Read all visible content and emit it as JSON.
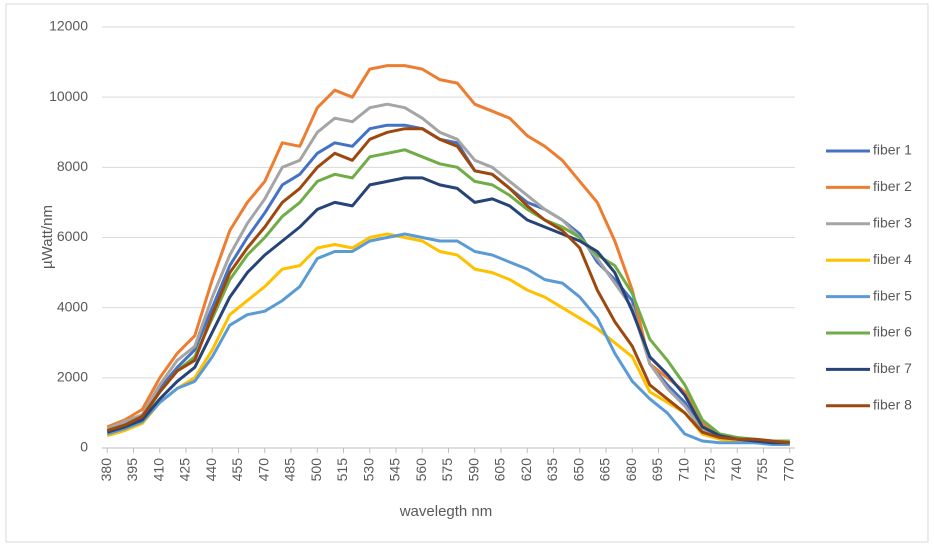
{
  "chart_data": {
    "type": "line",
    "xlabel": "wavelegth nm",
    "ylabel": "µWatt/nm",
    "x": [
      380,
      390,
      400,
      410,
      420,
      430,
      440,
      450,
      460,
      470,
      480,
      490,
      500,
      510,
      520,
      530,
      540,
      550,
      560,
      570,
      580,
      590,
      600,
      610,
      620,
      630,
      640,
      650,
      660,
      670,
      680,
      690,
      700,
      710,
      720,
      730,
      740,
      750,
      760,
      770
    ],
    "xlim": [
      377,
      773
    ],
    "xticks": [
      380,
      395,
      410,
      425,
      440,
      455,
      470,
      485,
      500,
      515,
      530,
      545,
      560,
      575,
      590,
      605,
      620,
      635,
      650,
      665,
      680,
      695,
      710,
      725,
      740,
      755,
      770
    ],
    "ylim": [
      0,
      12000
    ],
    "yticks": [
      0,
      2000,
      4000,
      6000,
      8000,
      10000,
      12000
    ],
    "grid": true,
    "legend": "right",
    "series": [
      {
        "name": "fiber 1",
        "color": "#4472c4",
        "values": [
          500,
          700,
          900,
          1700,
          2300,
          2800,
          4000,
          5200,
          6000,
          6700,
          7500,
          7800,
          8400,
          8700,
          8600,
          9100,
          9200,
          9200,
          9100,
          8800,
          8700,
          7900,
          7800,
          7400,
          7000,
          6800,
          6500,
          6100,
          5300,
          4800,
          4200,
          2400,
          1800,
          1300,
          500,
          300,
          250,
          200,
          150,
          150
        ]
      },
      {
        "name": "fiber 2",
        "color": "#ed7d31",
        "values": [
          600,
          800,
          1100,
          2000,
          2700,
          3200,
          4800,
          6200,
          7000,
          7600,
          8700,
          8600,
          9700,
          10200,
          10000,
          10800,
          10900,
          10900,
          10800,
          10500,
          10400,
          9800,
          9600,
          9400,
          8900,
          8600,
          8200,
          7600,
          7000,
          5900,
          4500,
          2400,
          2000,
          1600,
          700,
          350,
          250,
          200,
          150,
          150
        ]
      },
      {
        "name": "fiber 3",
        "color": "#a5a5a5",
        "values": [
          550,
          750,
          950,
          1800,
          2500,
          2900,
          4300,
          5500,
          6400,
          7100,
          8000,
          8200,
          9000,
          9400,
          9300,
          9700,
          9800,
          9700,
          9400,
          9000,
          8800,
          8200,
          8000,
          7600,
          7200,
          6800,
          6500,
          6000,
          5400,
          4700,
          4000,
          2400,
          1700,
          1200,
          500,
          300,
          250,
          200,
          150,
          150
        ]
      },
      {
        "name": "fiber 4",
        "color": "#ffc000",
        "values": [
          350,
          500,
          700,
          1300,
          1700,
          2000,
          2800,
          3800,
          4200,
          4600,
          5100,
          5200,
          5700,
          5800,
          5700,
          6000,
          6100,
          6000,
          5900,
          5600,
          5500,
          5100,
          5000,
          4800,
          4500,
          4300,
          4000,
          3700,
          3400,
          3000,
          2600,
          1600,
          1300,
          1000,
          400,
          250,
          200,
          150,
          150,
          150
        ]
      },
      {
        "name": "fiber 5",
        "color": "#5b9bd5",
        "values": [
          400,
          550,
          750,
          1300,
          1700,
          1900,
          2600,
          3500,
          3800,
          3900,
          4200,
          4600,
          5400,
          5600,
          5600,
          5900,
          6000,
          6100,
          6000,
          5900,
          5900,
          5600,
          5500,
          5300,
          5100,
          4800,
          4700,
          4300,
          3700,
          2700,
          1900,
          1400,
          1000,
          400,
          200,
          150,
          150,
          150,
          100,
          100
        ]
      },
      {
        "name": "fiber 6",
        "color": "#70ad47",
        "values": [
          500,
          650,
          850,
          1600,
          2200,
          2600,
          3700,
          4800,
          5500,
          6000,
          6600,
          7000,
          7600,
          7800,
          7700,
          8300,
          8400,
          8500,
          8300,
          8100,
          8000,
          7600,
          7500,
          7200,
          6800,
          6500,
          6300,
          6000,
          5500,
          5200,
          4400,
          3100,
          2500,
          1800,
          800,
          400,
          300,
          250,
          200,
          200
        ]
      },
      {
        "name": "fiber 7",
        "color": "#264478",
        "values": [
          450,
          600,
          800,
          1400,
          1900,
          2300,
          3300,
          4300,
          5000,
          5500,
          5900,
          6300,
          6800,
          7000,
          6900,
          7500,
          7600,
          7700,
          7700,
          7500,
          7400,
          7000,
          7100,
          6900,
          6500,
          6300,
          6100,
          5900,
          5600,
          5000,
          3900,
          2600,
          2100,
          1500,
          600,
          350,
          250,
          200,
          150,
          150
        ]
      },
      {
        "name": "fiber 8",
        "color": "#9e480e",
        "values": [
          500,
          650,
          900,
          1600,
          2200,
          2500,
          3800,
          5000,
          5700,
          6300,
          7000,
          7400,
          8000,
          8400,
          8200,
          8800,
          9000,
          9100,
          9100,
          8800,
          8600,
          7900,
          7800,
          7400,
          6900,
          6500,
          6200,
          5700,
          4500,
          3600,
          2900,
          1800,
          1400,
          1000,
          450,
          300,
          250,
          250,
          200,
          150
        ]
      }
    ]
  }
}
